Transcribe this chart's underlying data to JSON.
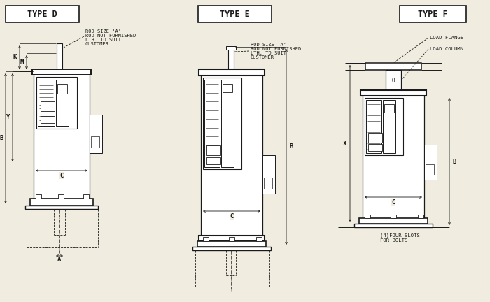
{
  "bg": "#f0ede0",
  "lc": "#1a1a1a",
  "white": "#ffffff",
  "title_d": "TYPE D",
  "title_e": "TYPE E",
  "title_f": "TYPE F",
  "note_load_flange": "LOAD FLANGE",
  "note_load_column": "LOAD COLUMN",
  "note_slots": "(4)FOUR SLOTS\nFOR BOLTS"
}
